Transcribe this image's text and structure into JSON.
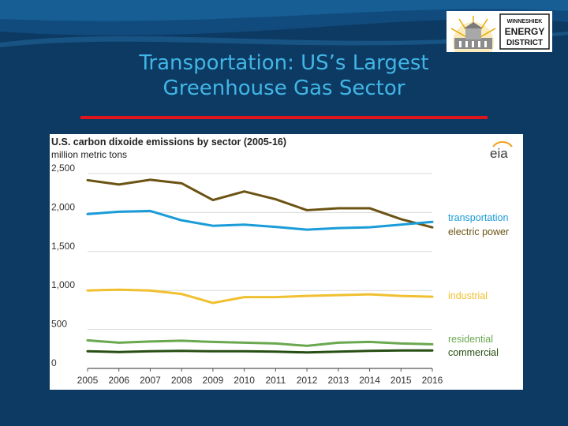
{
  "slide": {
    "title_line1": "Transportation: US’s Largest",
    "title_line2": "Greenhouse Gas Sector",
    "background_color": "#0d3a63",
    "title_color": "#41b6e6",
    "rule_color": "#e0141b"
  },
  "logo": {
    "line1": "WINNESHIEK",
    "line2": "ENERGY",
    "line3": "DISTRICT"
  },
  "source_logo": {
    "text": "eia"
  },
  "chart_data": {
    "type": "line",
    "title": "U.S. carbon dixoide emissions by sector (2005-16)",
    "ylabel": "million metric tons",
    "xlabel": "",
    "x": [
      2005,
      2006,
      2007,
      2008,
      2009,
      2010,
      2011,
      2012,
      2013,
      2014,
      2015,
      2016
    ],
    "ylim": [
      0,
      2500
    ],
    "yticks": [
      0,
      500,
      1000,
      1500,
      2000,
      2500
    ],
    "ytick_labels": [
      "0",
      "500",
      "1,000",
      "1,500",
      "2,000",
      "2,500"
    ],
    "grid": true,
    "series": [
      {
        "name": "electric power",
        "color": "#6b5313",
        "values": [
          2415,
          2360,
          2420,
          2375,
          2160,
          2270,
          2170,
          2030,
          2055,
          2055,
          1915,
          1810
        ]
      },
      {
        "name": "transportation",
        "color": "#1a9cd8",
        "values": [
          1980,
          2010,
          2020,
          1900,
          1830,
          1845,
          1815,
          1780,
          1800,
          1810,
          1845,
          1880
        ]
      },
      {
        "name": "industrial",
        "color": "#f0c030",
        "values": [
          1000,
          1010,
          1000,
          955,
          840,
          915,
          915,
          930,
          940,
          950,
          930,
          920
        ]
      },
      {
        "name": "residential",
        "color": "#6aa84f",
        "values": [
          360,
          330,
          345,
          355,
          340,
          330,
          320,
          290,
          330,
          340,
          320,
          310
        ]
      },
      {
        "name": "commercial",
        "color": "#274e13",
        "values": [
          220,
          210,
          220,
          225,
          220,
          220,
          215,
          205,
          215,
          225,
          230,
          230
        ]
      }
    ],
    "legend": [
      {
        "label": "transportation",
        "color": "#1a9cd8"
      },
      {
        "label": "electric power",
        "color": "#6b5313"
      },
      {
        "label": "industrial",
        "color": "#f0c030"
      },
      {
        "label": "residential",
        "color": "#6aa84f"
      },
      {
        "label": "commercial",
        "color": "#274e13"
      }
    ]
  }
}
